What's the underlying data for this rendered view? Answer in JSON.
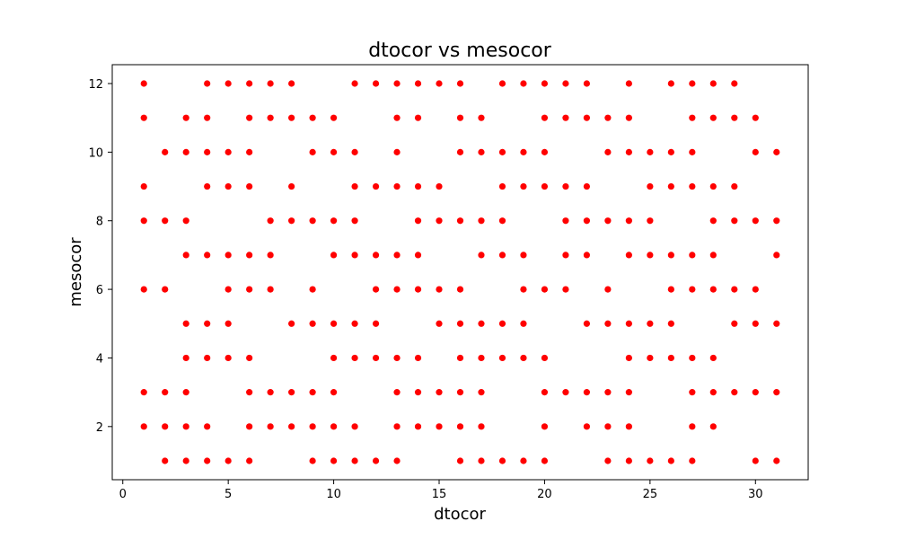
{
  "chart_data": {
    "type": "scatter",
    "title": "dtocor vs mesocor",
    "xlabel": "dtocor",
    "ylabel": "mesocor",
    "xlim": [
      -0.5,
      32.5
    ],
    "ylim": [
      0.45,
      12.55
    ],
    "xticks": [
      0,
      5,
      10,
      15,
      20,
      25,
      30
    ],
    "yticks": [
      2,
      4,
      6,
      8,
      10,
      12
    ],
    "grid": false,
    "marker_color": "#ff0000",
    "rows": [
      {
        "y": 12,
        "x": [
          1,
          4,
          5,
          6,
          7,
          8,
          11,
          12,
          13,
          14,
          15,
          16,
          18,
          19,
          20,
          21,
          22,
          24,
          26,
          27,
          28,
          29
        ]
      },
      {
        "y": 11,
        "x": [
          1,
          3,
          4,
          6,
          7,
          8,
          9,
          10,
          13,
          14,
          16,
          17,
          20,
          21,
          22,
          23,
          24,
          27,
          28,
          29,
          30
        ]
      },
      {
        "y": 10,
        "x": [
          2,
          3,
          4,
          5,
          6,
          9,
          10,
          11,
          13,
          16,
          17,
          18,
          19,
          20,
          23,
          24,
          25,
          26,
          27,
          30,
          31
        ]
      },
      {
        "y": 9,
        "x": [
          1,
          4,
          5,
          6,
          8,
          11,
          12,
          13,
          14,
          15,
          18,
          19,
          20,
          21,
          22,
          25,
          26,
          27,
          28,
          29
        ]
      },
      {
        "y": 8,
        "x": [
          1,
          2,
          3,
          7,
          8,
          9,
          10,
          11,
          14,
          15,
          16,
          17,
          18,
          21,
          22,
          23,
          24,
          25,
          28,
          29,
          30,
          31
        ]
      },
      {
        "y": 7,
        "x": [
          3,
          4,
          5,
          6,
          7,
          10,
          11,
          12,
          13,
          14,
          17,
          18,
          19,
          21,
          22,
          24,
          25,
          26,
          27,
          28,
          31
        ]
      },
      {
        "y": 6,
        "x": [
          1,
          2,
          5,
          6,
          7,
          9,
          12,
          13,
          14,
          15,
          16,
          19,
          20,
          21,
          23,
          26,
          27,
          28,
          29,
          30
        ]
      },
      {
        "y": 5,
        "x": [
          3,
          4,
          5,
          8,
          9,
          10,
          11,
          12,
          15,
          16,
          17,
          18,
          19,
          22,
          23,
          24,
          25,
          26,
          29,
          30,
          31
        ]
      },
      {
        "y": 4,
        "x": [
          3,
          4,
          5,
          6,
          10,
          11,
          12,
          13,
          14,
          16,
          17,
          18,
          19,
          20,
          24,
          25,
          26,
          27,
          28
        ]
      },
      {
        "y": 3,
        "x": [
          1,
          2,
          3,
          6,
          7,
          8,
          9,
          10,
          13,
          14,
          15,
          16,
          17,
          20,
          21,
          22,
          23,
          24,
          27,
          28,
          29,
          30,
          31
        ]
      },
      {
        "y": 2,
        "x": [
          1,
          2,
          3,
          4,
          6,
          7,
          8,
          9,
          10,
          11,
          13,
          14,
          15,
          16,
          17,
          20,
          22,
          23,
          24,
          27,
          28
        ]
      },
      {
        "y": 1,
        "x": [
          2,
          3,
          4,
          5,
          6,
          9,
          10,
          11,
          12,
          13,
          16,
          17,
          18,
          19,
          20,
          23,
          24,
          25,
          26,
          27,
          30,
          31
        ]
      }
    ]
  }
}
